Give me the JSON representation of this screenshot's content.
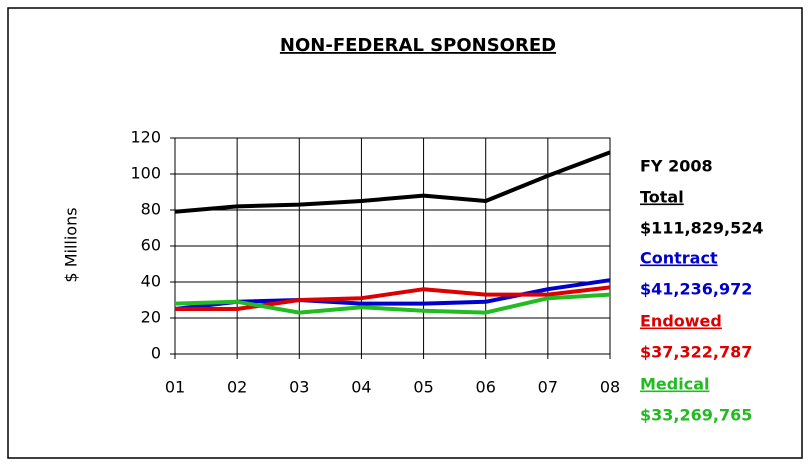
{
  "chart_data": {
    "type": "line",
    "title": "NON-FEDERAL SPONSORED",
    "y_label": "$ Millions",
    "categories": [
      "01",
      "02",
      "03",
      "04",
      "05",
      "06",
      "07",
      "08"
    ],
    "ylim": [
      0,
      120
    ],
    "yticks": [
      0,
      20,
      40,
      60,
      80,
      100,
      120
    ],
    "grid": true,
    "legend_title": "FY 2008",
    "series": [
      {
        "name": "Total",
        "color": "#000000",
        "amount": "$111,829,524",
        "values": [
          79,
          82,
          83,
          85,
          88,
          85,
          99,
          112
        ]
      },
      {
        "name": "Contract",
        "color": "#0000cc",
        "amount": "$41,236,972",
        "values": [
          25,
          29,
          30,
          28,
          28,
          29,
          36,
          41
        ]
      },
      {
        "name": "Endowed",
        "color": "#dd0000",
        "amount": "$37,322,787",
        "values": [
          25,
          25,
          30,
          31,
          36,
          33,
          33,
          37
        ]
      },
      {
        "name": "Medical",
        "color": "#22bb22",
        "amount": "$33,269,765",
        "values": [
          28,
          29,
          23,
          26,
          24,
          23,
          31,
          33
        ]
      }
    ]
  }
}
